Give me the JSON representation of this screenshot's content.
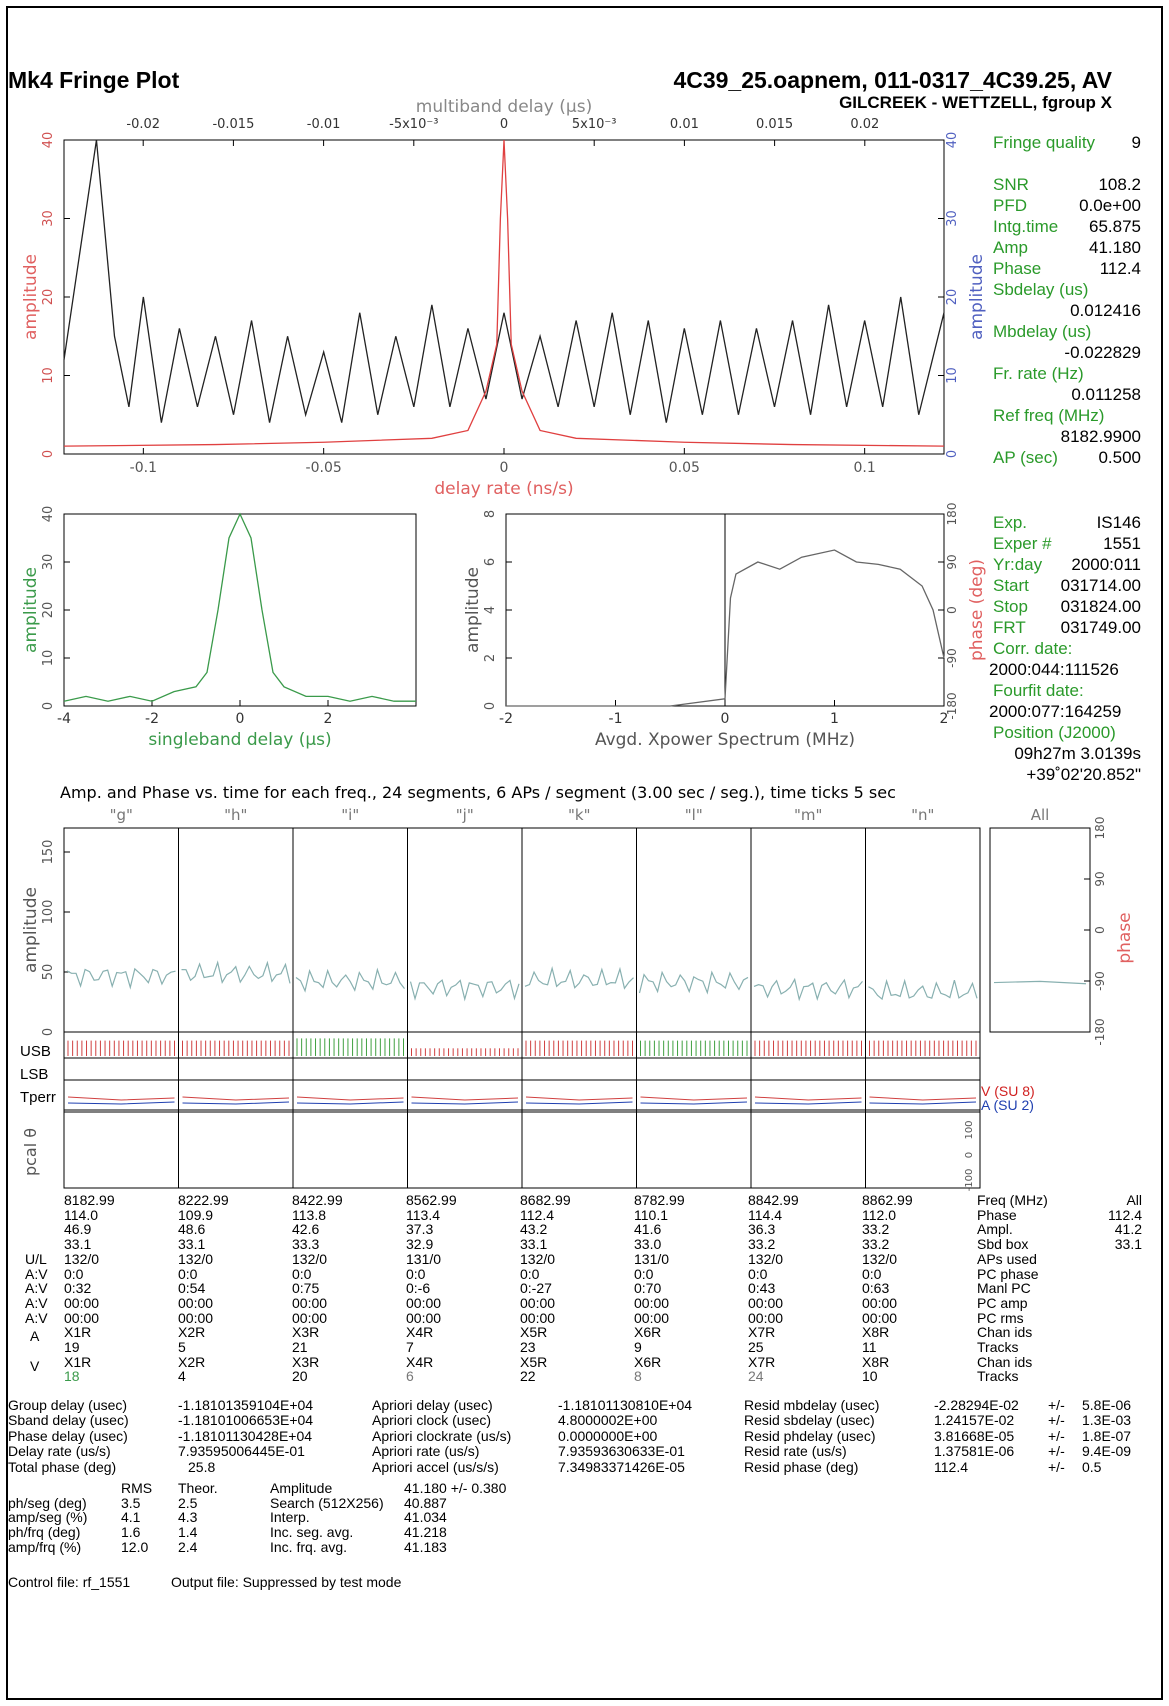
{
  "header": {
    "title": "Mk4 Fringe Plot",
    "file": "4C39_25.oapnem, 011-0317_4C39.25, AV",
    "baseline": "GILCREEK - WETTZELL, fgroup X"
  },
  "summary": {
    "fringe_quality_label": "Fringe quality",
    "fringe_quality": "9",
    "items": [
      {
        "label": "SNR",
        "value": "108.2"
      },
      {
        "label": "PFD",
        "value": "0.0e+00"
      },
      {
        "label": "Intg.time",
        "value": "65.875"
      },
      {
        "label": "Amp",
        "value": "41.180"
      },
      {
        "label": "Phase",
        "value": "112.4"
      }
    ],
    "sbdelay_label": "Sbdelay (us)",
    "sbdelay": "0.012416",
    "mbdelay_label": "Mbdelay (us)",
    "mbdelay": "-0.022829",
    "frrate_label": "Fr. rate (Hz)",
    "frrate": "0.011258",
    "reffreq_label": "Ref freq (MHz)",
    "reffreq": "8182.9900",
    "ap_label": "AP (sec)",
    "ap": "0.500"
  },
  "exp_info": {
    "items": [
      {
        "label": "Exp.",
        "value": "IS146"
      },
      {
        "label": "Exper #",
        "value": "1551"
      },
      {
        "label": "Yr:day",
        "value": "2000:011"
      },
      {
        "label": "Start",
        "value": "031714.00"
      },
      {
        "label": "Stop",
        "value": "031824.00"
      },
      {
        "label": "FRT",
        "value": "031749.00"
      }
    ],
    "corr_label": "Corr. date:",
    "corr": "2000:044:111526",
    "fourfit_label": "Fourfit date:",
    "fourfit": "2000:077:164259",
    "pos_label": "Position (J2000)",
    "ra": "09h27m 3.0139s",
    "dec": "+39˚02'20.852\""
  },
  "chart_data": [
    {
      "type": "line",
      "title": "",
      "xlabel": "delay rate (ns/s)",
      "x2label": "multiband delay (µs)",
      "ylabel": "amplitude",
      "xlim": [
        -0.122,
        0.122
      ],
      "ylim": [
        0,
        40
      ],
      "x_ticks": [
        "-0.1",
        "-0.05",
        "0",
        "0.05",
        "0.1"
      ],
      "x2_ticks": [
        "-0.02",
        "-0.015",
        "-0.01",
        "-5x10⁻³",
        "0",
        "5x10⁻³",
        "0.01",
        "0.015",
        "0.02"
      ],
      "y_ticks": [
        "0",
        "10",
        "20",
        "30",
        "40"
      ],
      "series": [
        {
          "color": "#222222",
          "x": [
            -0.122,
            -0.113,
            -0.108,
            -0.104,
            -0.1,
            -0.095,
            -0.09,
            -0.085,
            -0.08,
            -0.075,
            -0.07,
            -0.065,
            -0.06,
            -0.055,
            -0.05,
            -0.045,
            -0.04,
            -0.035,
            -0.03,
            -0.025,
            -0.02,
            -0.015,
            -0.01,
            -0.005,
            0,
            0.005,
            0.01,
            0.015,
            0.02,
            0.025,
            0.03,
            0.035,
            0.04,
            0.045,
            0.05,
            0.055,
            0.06,
            0.065,
            0.07,
            0.075,
            0.08,
            0.085,
            0.09,
            0.095,
            0.1,
            0.105,
            0.11,
            0.115,
            0.122
          ],
          "y": [
            12,
            40,
            15,
            6,
            20,
            4,
            16,
            6,
            15,
            5,
            17,
            4,
            15,
            5,
            13,
            4,
            18,
            5,
            15,
            6,
            19,
            6,
            16,
            7,
            18,
            7,
            15,
            6,
            17,
            6,
            18,
            5,
            17,
            4,
            16,
            5,
            17,
            5,
            16,
            6,
            17,
            5,
            19,
            6,
            17,
            6,
            20,
            5,
            18
          ]
        },
        {
          "color": "#e04040",
          "x": [
            -0.122,
            -0.08,
            -0.05,
            -0.02,
            -0.01,
            -0.005,
            -0.002,
            -0.001,
            0,
            0.001,
            0.002,
            0.005,
            0.01,
            0.02,
            0.05,
            0.08,
            0.122
          ],
          "y": [
            1,
            1.2,
            1.5,
            2,
            3,
            8,
            14,
            30,
            40,
            30,
            14,
            8,
            3,
            2,
            1.5,
            1.2,
            1
          ]
        }
      ]
    },
    {
      "type": "line",
      "xlabel": "singleband delay (µs)",
      "ylabel": "amplitude",
      "xlim": [
        -4,
        4
      ],
      "ylim": [
        0,
        40
      ],
      "x_ticks": [
        "-4",
        "-2",
        "0",
        "2"
      ],
      "y_ticks": [
        "0",
        "10",
        "20",
        "30",
        "40"
      ],
      "series": [
        {
          "color": "#3a9a4a",
          "x": [
            -4,
            -3.5,
            -3,
            -2.5,
            -2,
            -1.5,
            -1,
            -0.75,
            -0.5,
            -0.25,
            0,
            0.25,
            0.5,
            0.75,
            1,
            1.5,
            2,
            2.5,
            3,
            3.5,
            4
          ],
          "y": [
            1,
            2,
            1,
            2,
            1,
            3,
            4,
            7,
            20,
            35,
            40,
            35,
            20,
            7,
            4,
            2,
            2,
            1,
            2,
            1,
            1
          ]
        }
      ]
    },
    {
      "type": "line",
      "xlabel": "Avgd. Xpower Spectrum (MHz)",
      "ylabel": "amplitude",
      "y2label": "phase (deg)",
      "xlim": [
        -2,
        2
      ],
      "ylim": [
        0,
        8
      ],
      "y2lim": [
        -180,
        180
      ],
      "x_ticks": [
        "-2",
        "-1",
        "0",
        "1",
        "2"
      ],
      "y_ticks": [
        "0",
        "2",
        "4",
        "6",
        "8"
      ],
      "y2_ticks": [
        "-180",
        "-90",
        "0",
        "90",
        "180"
      ],
      "series": [
        {
          "color": "#666666",
          "x": [
            -2,
            -0.5,
            0,
            0.05,
            0.1,
            0.3,
            0.5,
            0.7,
            1.0,
            1.2,
            1.4,
            1.6,
            1.8,
            1.9,
            2.0
          ],
          "y": [
            0,
            0,
            0.3,
            4.5,
            5.5,
            6.0,
            5.7,
            6.2,
            6.5,
            6.0,
            5.9,
            5.7,
            5.0,
            4.0,
            2.0
          ]
        }
      ]
    },
    {
      "type": "line",
      "title": "Amp. and Phase vs. time for each freq., 24 segments, 6 APs / segment (3.00 sec / seg.), time ticks 5 sec",
      "ylabel": "amplitude",
      "y2label": "phase",
      "ylim": [
        0,
        170
      ],
      "y2lim": [
        -180,
        180
      ],
      "y_ticks": [
        "0",
        "50",
        "100",
        "150"
      ],
      "y2_ticks": [
        "-180",
        "-90",
        "0",
        "90",
        "180"
      ],
      "categories": [
        "\"g\"",
        "\"h\"",
        "\"i\"",
        "\"j\"",
        "\"k\"",
        "\"l\"",
        "\"m\"",
        "\"n\"",
        "All"
      ],
      "series": [
        {
          "name": "amplitude",
          "color": "#88b0b0",
          "values": [
            46.9,
            48.6,
            42.6,
            37.3,
            43.2,
            41.6,
            36.3,
            33.2,
            41.2
          ]
        }
      ]
    }
  ],
  "strip": {
    "usb_label": "USB",
    "lsb_label": "LSB",
    "tperr_label": "Tperr",
    "pcal_label": "pcal θ",
    "v_label": "V (SU 8)",
    "a_label": "A (SU 2)",
    "pcal_ticks": [
      "-100",
      "0",
      "100"
    ]
  },
  "freq_table": {
    "row_labels": [
      "",
      "",
      "",
      "",
      "U/L",
      "A:V",
      "A:V",
      "A:V",
      "A:V",
      "A",
      "",
      "V",
      ""
    ],
    "right_labels": [
      "Freq (MHz)",
      "Phase",
      "Ampl.",
      "Sbd box",
      "APs used",
      "PC phase",
      "Manl PC",
      "PC amp",
      "PC rms",
      "Chan ids",
      "Tracks",
      "Chan ids",
      "Tracks"
    ],
    "all_header": "All",
    "all_values": [
      "112.4",
      "41.2",
      "33.1"
    ],
    "columns": [
      [
        "8182.99",
        "114.0",
        "46.9",
        "33.1",
        "132/0",
        "0:0",
        "0:32",
        "00:00",
        "00:00",
        "X1R",
        "19",
        "X1R",
        "18"
      ],
      [
        "8222.99",
        "109.9",
        "48.6",
        "33.1",
        "132/0",
        "0:0",
        "0:54",
        "00:00",
        "00:00",
        "X2R",
        "5",
        "X2R",
        "4"
      ],
      [
        "8422.99",
        "113.8",
        "42.6",
        "33.3",
        "132/0",
        "0:0",
        "0:75",
        "00:00",
        "00:00",
        "X3R",
        "21",
        "X3R",
        "20"
      ],
      [
        "8562.99",
        "113.4",
        "37.3",
        "32.9",
        "131/0",
        "0:0",
        "0:-6",
        "00:00",
        "00:00",
        "X4R",
        "7",
        "X4R",
        "6"
      ],
      [
        "8682.99",
        "112.4",
        "43.2",
        "33.1",
        "132/0",
        "0:0",
        "0:-27",
        "00:00",
        "00:00",
        "X5R",
        "23",
        "X5R",
        "22"
      ],
      [
        "8782.99",
        "110.1",
        "41.6",
        "33.0",
        "131/0",
        "0:0",
        "0:70",
        "00:00",
        "00:00",
        "X6R",
        "9",
        "X6R",
        "8"
      ],
      [
        "8842.99",
        "114.4",
        "36.3",
        "33.2",
        "132/0",
        "0:0",
        "0:43",
        "00:00",
        "00:00",
        "X7R",
        "25",
        "X7R",
        "24"
      ],
      [
        "8862.99",
        "112.0",
        "33.2",
        "33.2",
        "132/0",
        "0:0",
        "0:63",
        "00:00",
        "00:00",
        "X8R",
        "11",
        "X8R",
        "10"
      ]
    ]
  },
  "delays": {
    "col1": [
      [
        "Group delay (usec)",
        "-1.18101359104E+04"
      ],
      [
        "Sband delay (usec)",
        "-1.18101006653E+04"
      ],
      [
        "Phase delay (usec)",
        "-1.18101130428E+04"
      ],
      [
        "Delay rate (us/s)",
        "7.93595006445E-01"
      ],
      [
        "Total phase (deg)",
        "25.8"
      ]
    ],
    "col2": [
      [
        "Apriori delay (usec)",
        "-1.18101130810E+04"
      ],
      [
        "Apriori clock (usec)",
        "4.8000002E+00"
      ],
      [
        "Apriori clockrate (us/s)",
        "0.0000000E+00"
      ],
      [
        "Apriori rate (us/s)",
        "7.93593630633E-01"
      ],
      [
        "Apriori accel (us/s/s)",
        "7.34983371426E-05"
      ]
    ],
    "col3": [
      [
        "Resid mbdelay (usec)",
        "-2.28294E-02",
        "+/-",
        "5.8E-06"
      ],
      [
        "Resid sbdelay (usec)",
        "1.24157E-02",
        "+/-",
        "1.3E-03"
      ],
      [
        "Resid phdelay (usec)",
        "3.81668E-05",
        "+/-",
        "1.8E-07"
      ],
      [
        "Resid rate (us/s)",
        "1.37581E-06",
        "+/-",
        "9.4E-09"
      ],
      [
        "Resid phase (deg)",
        "112.4",
        "+/-",
        "0.5"
      ]
    ]
  },
  "stats": {
    "rms_header": "RMS",
    "theor_header": "Theor.",
    "rows": [
      [
        "ph/seg (deg)",
        "3.5",
        "2.5"
      ],
      [
        "amp/seg (%)",
        "4.1",
        "4.3"
      ],
      [
        "ph/frq (deg)",
        "1.6",
        "1.4"
      ],
      [
        "amp/frq (%)",
        "12.0",
        "2.4"
      ]
    ],
    "amp_rows": [
      [
        "Amplitude",
        "41.180 +/- 0.380"
      ],
      [
        "Search (512X256)",
        "40.887"
      ],
      [
        "Interp.",
        "41.034"
      ],
      [
        "Inc. seg. avg.",
        "41.218"
      ],
      [
        "Inc. frq. avg.",
        "41.183"
      ]
    ]
  },
  "footer": {
    "control": "Control file: rf_1551",
    "output": "Output file: Suppressed by test mode"
  }
}
